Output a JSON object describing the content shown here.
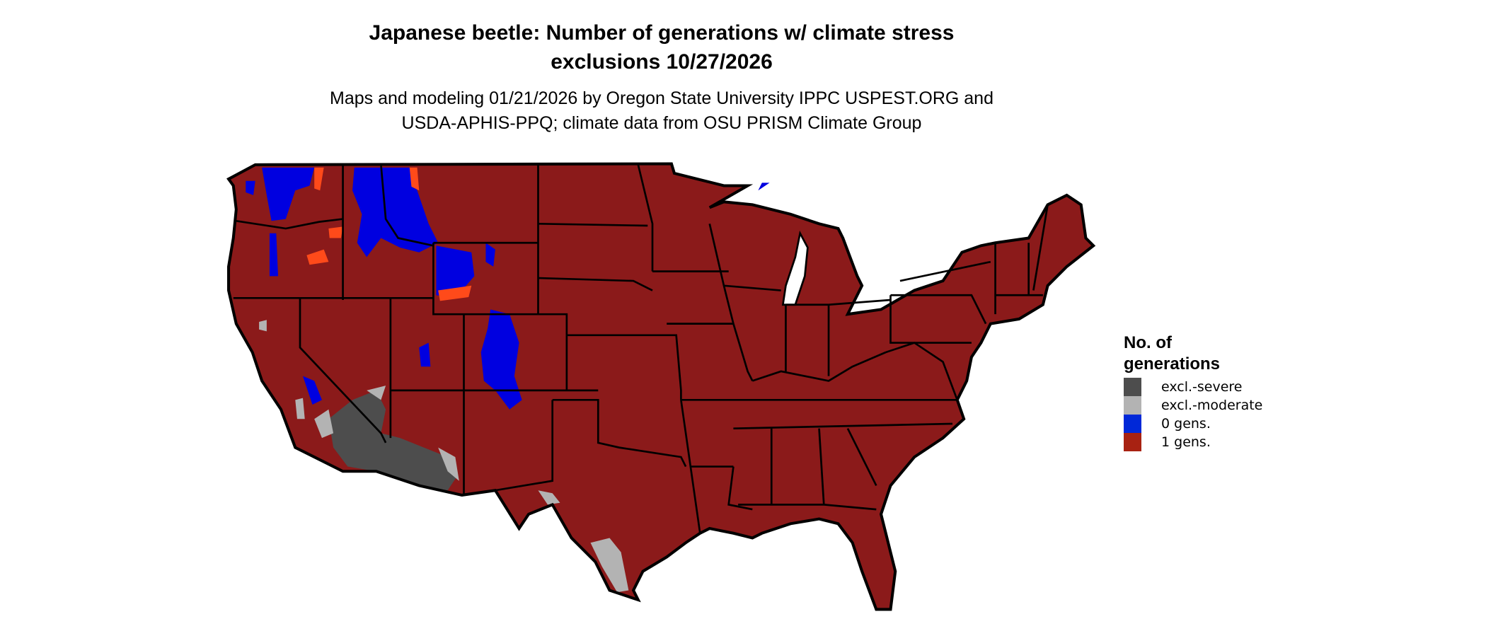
{
  "title": {
    "line1": "Japanese beetle: Number of generations w/ climate stress",
    "line2": "exclusions 10/27/2026"
  },
  "subtitle": {
    "line1": "Maps and modeling 01/21/2026 by Oregon State University IPPC USPEST.ORG and",
    "line2": "USDA-APHIS-PPQ; climate data from OSU PRISM Climate Group"
  },
  "map": {
    "region": "Contiguous United States",
    "base_color": "#8b1a1a",
    "colors": {
      "excl_severe": "#4d4d4d",
      "excl_moderate": "#b3b3b3",
      "zero_gens": "#0000e0",
      "one_gens": "#8b1a1a",
      "edge": "#ff4a1a"
    }
  },
  "legend": {
    "title_line1": "No. of",
    "title_line2": "generations",
    "items": [
      {
        "label": "excl.-severe",
        "color": "#4d4d4d"
      },
      {
        "label": "excl.-moderate",
        "color": "#b3b3b3"
      },
      {
        "label": "0 gens.",
        "color": "#0028d8"
      },
      {
        "label": "1 gens.",
        "color": "#a82212"
      }
    ]
  }
}
